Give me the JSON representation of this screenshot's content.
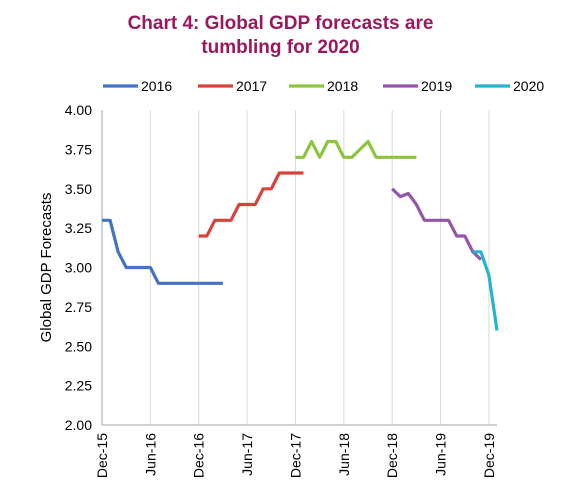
{
  "chart_data": {
    "type": "line",
    "title_lines": [
      "Chart 4: Global GDP forecasts are",
      "tumbling for 2020"
    ],
    "xlabel": "",
    "ylabel": "Global GDP Forecasts",
    "ylim": [
      2.0,
      4.0
    ],
    "yticks": [
      "4.00",
      "3.75",
      "3.50",
      "3.25",
      "3.00",
      "2.75",
      "2.50",
      "2.25",
      "2.00"
    ],
    "xlim": [
      "2015-12",
      "2020-01"
    ],
    "xtick_labels": [
      {
        "date": "2015-12",
        "label": "Dec-15"
      },
      {
        "date": "2016-06",
        "label": "Jun-16"
      },
      {
        "date": "2016-12",
        "label": "Dec-16"
      },
      {
        "date": "2017-06",
        "label": "Jun-17"
      },
      {
        "date": "2017-12",
        "label": "Dec-17"
      },
      {
        "date": "2018-06",
        "label": "Jun-18"
      },
      {
        "date": "2018-12",
        "label": "Dec-18"
      },
      {
        "date": "2019-06",
        "label": "Jun-19"
      },
      {
        "date": "2019-12",
        "label": "Dec-19"
      }
    ],
    "grid": "vertical",
    "legend_position": "top",
    "series": [
      {
        "name": "2016",
        "color": "#4472c4",
        "points": [
          [
            "2015-12",
            3.3
          ],
          [
            "2016-01",
            3.3
          ],
          [
            "2016-02",
            3.1
          ],
          [
            "2016-03",
            3.0
          ],
          [
            "2016-04",
            3.0
          ],
          [
            "2016-05",
            3.0
          ],
          [
            "2016-06",
            3.0
          ],
          [
            "2016-07",
            2.9
          ],
          [
            "2016-08",
            2.9
          ],
          [
            "2016-09",
            2.9
          ],
          [
            "2016-10",
            2.9
          ],
          [
            "2016-11",
            2.9
          ],
          [
            "2016-12",
            2.9
          ],
          [
            "2017-01",
            2.9
          ],
          [
            "2017-02",
            2.9
          ],
          [
            "2017-03",
            2.9
          ]
        ]
      },
      {
        "name": "2017",
        "color": "#d9413a",
        "points": [
          [
            "2016-12",
            3.2
          ],
          [
            "2017-01",
            3.2
          ],
          [
            "2017-02",
            3.3
          ],
          [
            "2017-03",
            3.3
          ],
          [
            "2017-04",
            3.3
          ],
          [
            "2017-05",
            3.4
          ],
          [
            "2017-06",
            3.4
          ],
          [
            "2017-07",
            3.4
          ],
          [
            "2017-08",
            3.5
          ],
          [
            "2017-09",
            3.5
          ],
          [
            "2017-10",
            3.6
          ],
          [
            "2017-11",
            3.6
          ],
          [
            "2017-12",
            3.6
          ],
          [
            "2018-01",
            3.6
          ]
        ]
      },
      {
        "name": "2018",
        "color": "#8dc43f",
        "points": [
          [
            "2017-12",
            3.7
          ],
          [
            "2018-01",
            3.7
          ],
          [
            "2018-02",
            3.8
          ],
          [
            "2018-03",
            3.7
          ],
          [
            "2018-04",
            3.8
          ],
          [
            "2018-05",
            3.8
          ],
          [
            "2018-06",
            3.7
          ],
          [
            "2018-07",
            3.7
          ],
          [
            "2018-08",
            3.75
          ],
          [
            "2018-09",
            3.8
          ],
          [
            "2018-10",
            3.7
          ],
          [
            "2018-11",
            3.7
          ],
          [
            "2018-12",
            3.7
          ],
          [
            "2019-01",
            3.7
          ],
          [
            "2019-02",
            3.7
          ],
          [
            "2019-03",
            3.7
          ]
        ]
      },
      {
        "name": "2019",
        "color": "#9356a8",
        "points": [
          [
            "2018-12",
            3.5
          ],
          [
            "2019-01",
            3.45
          ],
          [
            "2019-02",
            3.47
          ],
          [
            "2019-03",
            3.4
          ],
          [
            "2019-04",
            3.3
          ],
          [
            "2019-05",
            3.3
          ],
          [
            "2019-06",
            3.3
          ],
          [
            "2019-07",
            3.3
          ],
          [
            "2019-08",
            3.2
          ],
          [
            "2019-09",
            3.2
          ],
          [
            "2019-10",
            3.1
          ],
          [
            "2019-11",
            3.05
          ]
        ]
      },
      {
        "name": "2020",
        "color": "#21b5cf",
        "points": [
          [
            "2019-10",
            3.1
          ],
          [
            "2019-11",
            3.1
          ],
          [
            "2019-12",
            2.95
          ],
          [
            "2020-01",
            2.6
          ]
        ]
      }
    ]
  }
}
